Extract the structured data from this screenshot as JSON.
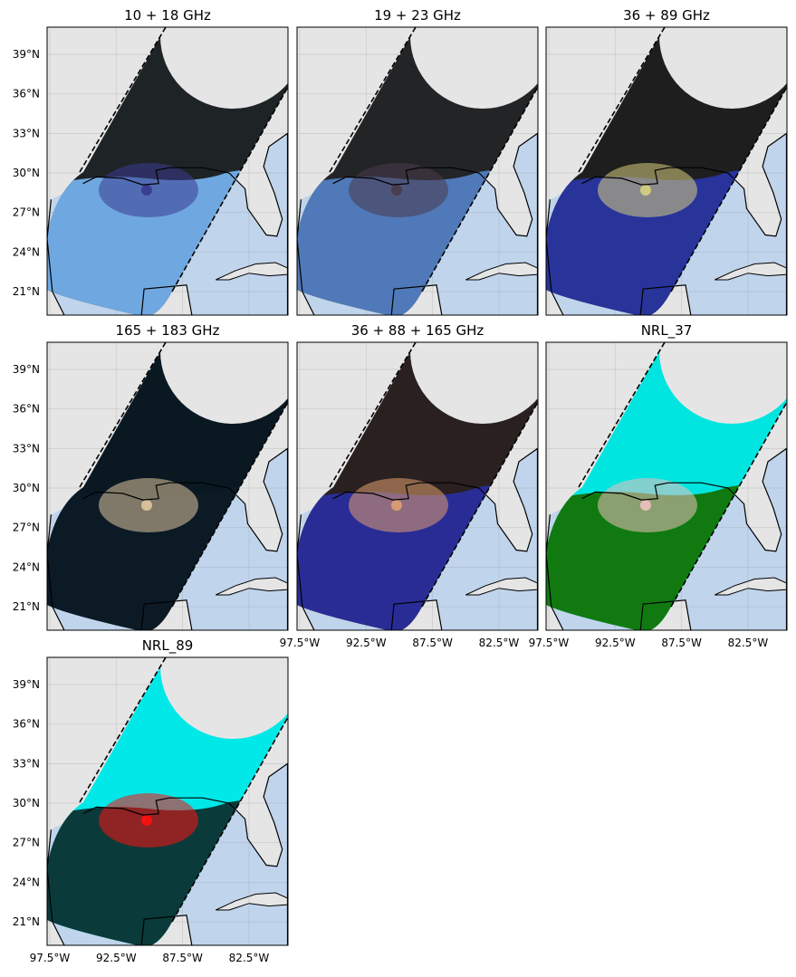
{
  "panels": [
    {
      "title": "10 + 18 GHz"
    },
    {
      "title": "19 + 23 GHz"
    },
    {
      "title": "36 + 89 GHz"
    },
    {
      "title": "165 + 183 GHz"
    },
    {
      "title": "36 + 88 + 165 GHz"
    },
    {
      "title": "NRL_37"
    },
    {
      "title": "NRL_89"
    }
  ],
  "lat_ticks": [
    {
      "value": 39,
      "label": "39°N"
    },
    {
      "value": 36,
      "label": "36°N"
    },
    {
      "value": 33,
      "label": "33°N"
    },
    {
      "value": 30,
      "label": "30°N"
    },
    {
      "value": 27,
      "label": "27°N"
    },
    {
      "value": 24,
      "label": "24°N"
    },
    {
      "value": 21,
      "label": "21°N"
    }
  ],
  "lon_ticks": [
    {
      "value": -97.5,
      "label": "97.5°W"
    },
    {
      "value": -92.5,
      "label": "92.5°W"
    },
    {
      "value": -87.5,
      "label": "87.5°W"
    },
    {
      "value": -82.5,
      "label": "82.5°W"
    }
  ]
}
